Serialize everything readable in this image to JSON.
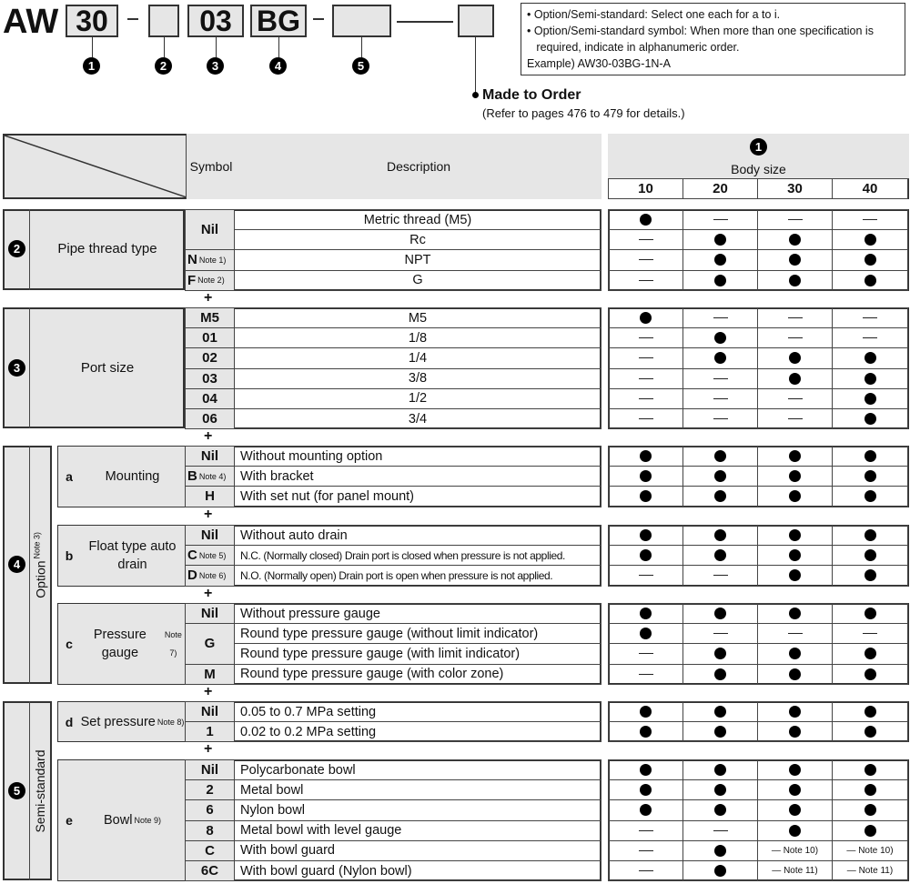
{
  "header": {
    "prefix": "AW",
    "code_boxes": [
      "30",
      "",
      "03",
      "BG",
      "",
      ""
    ],
    "circle_numbers": [
      "1",
      "2",
      "3",
      "4",
      "5"
    ],
    "made_to_order": "Made to Order",
    "made_to_order_ref": "(Refer to pages 476 to 479 for details.)",
    "notes": [
      "• Option/Semi-standard: Select one each for a to i.",
      "• Option/Semi-standard symbol: When more than one specification is",
      "   required, indicate in alphanumeric order.",
      "Example) AW30-03BG-1N-A"
    ]
  },
  "table_header": {
    "symbol": "Symbol",
    "description": "Description",
    "circle": "1",
    "body_size": "Body size",
    "sizes": [
      "10",
      "20",
      "30",
      "40"
    ]
  },
  "marks": {
    "yes": "●",
    "no": "—"
  },
  "plus": "+",
  "sections": [
    {
      "num": "2",
      "label": "Pipe thread type",
      "subs": [
        {
          "rows": [
            {
              "sym": "Nil",
              "span": 2,
              "desc": "Metric thread (M5)",
              "avail": [
                "●",
                "—",
                "—",
                "—"
              ]
            },
            {
              "desc": "Rc",
              "avail": [
                "—",
                "●",
                "●",
                "●"
              ]
            },
            {
              "sym": "N",
              "note": "Note 1)",
              "desc": "NPT",
              "avail": [
                "—",
                "●",
                "●",
                "●"
              ]
            },
            {
              "sym": "F",
              "note": "Note 2)",
              "desc": "G",
              "avail": [
                "—",
                "●",
                "●",
                "●"
              ]
            }
          ]
        }
      ]
    },
    {
      "num": "3",
      "label": "Port size",
      "subs": [
        {
          "rows": [
            {
              "sym": "M5",
              "desc": "M5",
              "avail": [
                "●",
                "—",
                "—",
                "—"
              ]
            },
            {
              "sym": "01",
              "desc": "1/8",
              "avail": [
                "—",
                "●",
                "—",
                "—"
              ]
            },
            {
              "sym": "02",
              "desc": "1/4",
              "avail": [
                "—",
                "●",
                "●",
                "●"
              ]
            },
            {
              "sym": "03",
              "desc": "3/8",
              "avail": [
                "—",
                "—",
                "●",
                "●"
              ]
            },
            {
              "sym": "04",
              "desc": "1/2",
              "avail": [
                "—",
                "—",
                "—",
                "●"
              ]
            },
            {
              "sym": "06",
              "desc": "3/4",
              "avail": [
                "—",
                "—",
                "—",
                "●"
              ]
            }
          ]
        }
      ]
    },
    {
      "num": "4",
      "label": "Option",
      "label_note": "Note 3)",
      "subs": [
        {
          "letter": "a",
          "label": "Mounting",
          "rows": [
            {
              "sym": "Nil",
              "desc": "Without mounting option",
              "avail": [
                "●",
                "●",
                "●",
                "●"
              ]
            },
            {
              "sym": "B",
              "note": "Note 4)",
              "desc": "With bracket",
              "avail": [
                "●",
                "●",
                "●",
                "●"
              ]
            },
            {
              "sym": "H",
              "desc": "With set nut (for panel mount)",
              "avail": [
                "●",
                "●",
                "●",
                "●"
              ]
            }
          ]
        },
        {
          "letter": "b",
          "label": "Float type auto drain",
          "rows": [
            {
              "sym": "Nil",
              "desc": "Without auto drain",
              "avail": [
                "●",
                "●",
                "●",
                "●"
              ]
            },
            {
              "sym": "C",
              "note": "Note 5)",
              "desc": "N.C. (Normally closed) Drain port is closed when pressure is not applied.",
              "avail": [
                "●",
                "●",
                "●",
                "●"
              ]
            },
            {
              "sym": "D",
              "note": "Note 6)",
              "desc": "N.O. (Normally open) Drain port is open when pressure is not applied.",
              "avail": [
                "—",
                "—",
                "●",
                "●"
              ]
            }
          ]
        },
        {
          "letter": "c",
          "label": "Pressure gauge",
          "note": "Note 7)",
          "rows": [
            {
              "sym": "Nil",
              "desc": "Without pressure gauge",
              "avail": [
                "●",
                "●",
                "●",
                "●"
              ]
            },
            {
              "sym": "G",
              "span": 2,
              "desc": "Round type pressure gauge (without limit indicator)",
              "avail": [
                "●",
                "—",
                "—",
                "—"
              ]
            },
            {
              "desc": "Round type pressure gauge (with limit indicator)",
              "avail": [
                "—",
                "●",
                "●",
                "●"
              ]
            },
            {
              "sym": "M",
              "desc": "Round type pressure gauge (with color zone)",
              "avail": [
                "—",
                "●",
                "●",
                "●"
              ]
            }
          ]
        }
      ]
    },
    {
      "num": "5",
      "label": "Semi-standard",
      "subs": [
        {
          "letter": "d",
          "label": "Set pressure",
          "note": "Note 8)",
          "rows": [
            {
              "sym": "Nil",
              "desc": "0.05 to 0.7 MPa setting",
              "avail": [
                "●",
                "●",
                "●",
                "●"
              ]
            },
            {
              "sym": "1",
              "desc": "0.02 to 0.2 MPa setting",
              "avail": [
                "●",
                "●",
                "●",
                "●"
              ]
            }
          ]
        },
        {
          "letter": "e",
          "label": "Bowl",
          "note": "Note 9)",
          "rows": [
            {
              "sym": "Nil",
              "desc": "Polycarbonate bowl",
              "avail": [
                "●",
                "●",
                "●",
                "●"
              ]
            },
            {
              "sym": "2",
              "desc": "Metal bowl",
              "avail": [
                "●",
                "●",
                "●",
                "●"
              ]
            },
            {
              "sym": "6",
              "desc": "Nylon bowl",
              "avail": [
                "●",
                "●",
                "●",
                "●"
              ]
            },
            {
              "sym": "8",
              "desc": "Metal bowl with level gauge",
              "avail": [
                "—",
                "—",
                "●",
                "●"
              ]
            },
            {
              "sym": "C",
              "desc": "With bowl guard",
              "avail": [
                "—",
                "●",
                "— Note 10)",
                "— Note 10)"
              ]
            },
            {
              "sym": "6C",
              "desc": "With bowl guard (Nylon bowl)",
              "avail": [
                "—",
                "●",
                "— Note 11)",
                "— Note 11)"
              ]
            }
          ]
        }
      ]
    }
  ]
}
